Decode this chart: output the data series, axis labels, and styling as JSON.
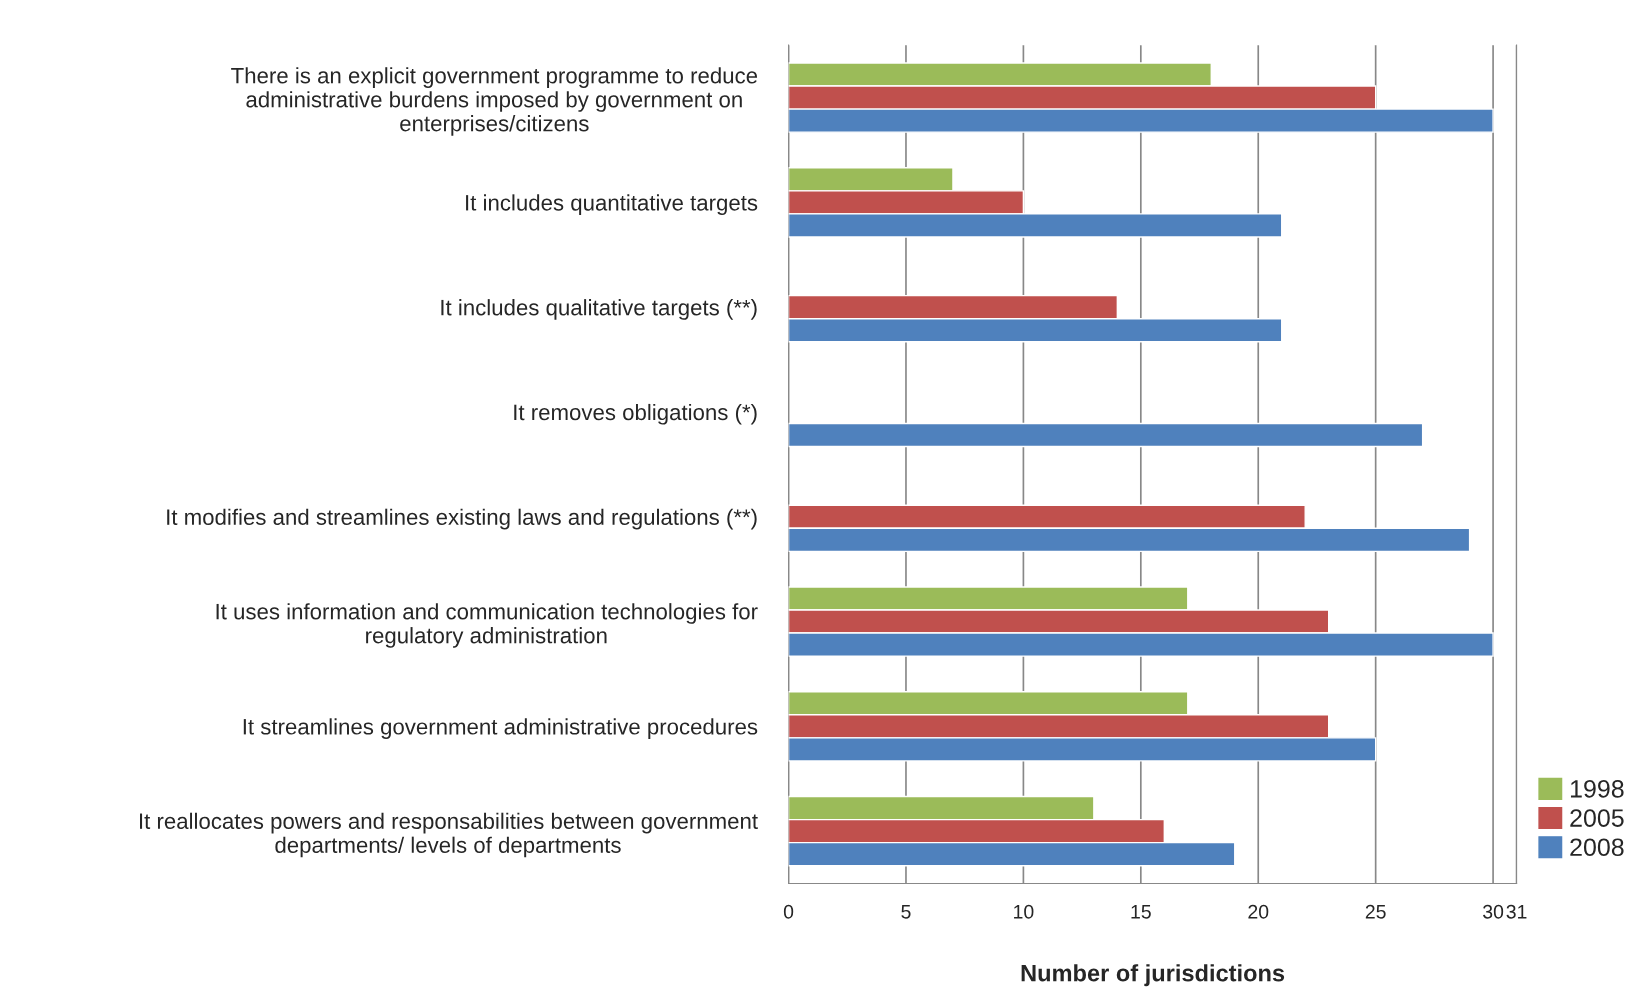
{
  "chart_data": {
    "type": "bar",
    "orientation": "horizontal",
    "xlabel": "Number of jurisdictions",
    "categories": [
      "There is an explicit government programme to reduce\nadministrative burdens imposed by government on\nenterprises/citizens",
      "It includes quantitative targets",
      "It includes qualitative targets (**)",
      "It removes obligations (*)",
      "It modifies and streamlines existing laws and regulations (**)",
      "It uses information and communication technologies for\nregulatory administration",
      "It streamlines government administrative procedures",
      "It reallocates powers and responsabilities between government\ndepartments/ levels of departments"
    ],
    "series": [
      {
        "name": "1998",
        "color": "#9bbb59",
        "values": [
          18,
          7,
          null,
          null,
          null,
          17,
          17,
          13
        ]
      },
      {
        "name": "2005",
        "color": "#c0504d",
        "values": [
          25,
          10,
          14,
          null,
          22,
          23,
          23,
          16
        ]
      },
      {
        "name": "2008",
        "color": "#4f81bd",
        "values": [
          30,
          21,
          21,
          27,
          29,
          30,
          25,
          19
        ]
      }
    ],
    "xlim": [
      0,
      31
    ],
    "xticks": [
      0,
      5,
      10,
      15,
      20,
      25,
      30,
      31
    ],
    "grid": "x",
    "legend": "bottom right"
  }
}
